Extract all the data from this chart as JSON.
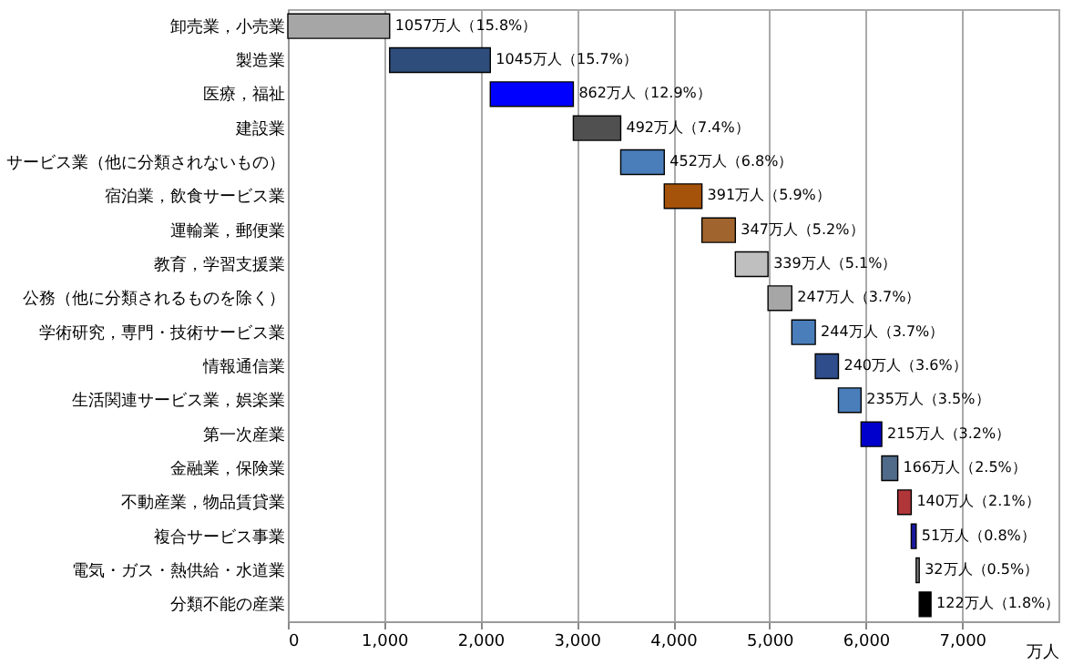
{
  "chart_data": {
    "type": "bar",
    "orientation": "horizontal",
    "xlabel": "万人",
    "categories": [
      "卸売業，小売業",
      "製造業",
      "医療，福祉",
      "建設業",
      "サービス業（他に分類されないもの）",
      "宿泊業，飲食サービス業",
      "運輸業，郵便業",
      "教育，学習支援業",
      "公務（他に分類されるものを除く）",
      "学術研究，専門・技術サービス業",
      "情報通信業",
      "生活関連サービス業，娯楽業",
      "第一次産業",
      "金融業，保険業",
      "不動産業，物品賃貸業",
      "複合サービス事業",
      "電気・ガス・熱供給・水道業",
      "分類不能の産業"
    ],
    "values": [
      1057,
      1045,
      862,
      492,
      452,
      391,
      347,
      339,
      247,
      244,
      240,
      235,
      215,
      166,
      140,
      51,
      32,
      122
    ],
    "base": [
      0,
      1057,
      2102,
      2964,
      3456,
      3908,
      4299,
      4646,
      4985,
      5232,
      5476,
      5716,
      5951,
      6166,
      6332,
      6472,
      6523,
      6555
    ],
    "colors": [
      "#a6a6a6",
      "#2e4d7b",
      "#0000ff",
      "#505050",
      "#4a7ebb",
      "#a5520a",
      "#a0642e",
      "#bfbfbf",
      "#a6a6a6",
      "#4a7ebb",
      "#2e4d8a",
      "#4a7ebb",
      "#0000cc",
      "#506a8a",
      "#b0363a",
      "#1a1aa0",
      "#7f7f7f",
      "#000000"
    ],
    "value_labels": [
      "1057万人（15.8%）",
      "1045万人（15.7%）",
      "862万人（12.9%）",
      "492万人（7.4%）",
      "452万人（6.8%）",
      "391万人（5.9%）",
      "347万人（5.2%）",
      "339万人（5.1%）",
      "247万人（3.7%）",
      "244万人（3.7%）",
      "240万人（3.6%）",
      "235万人（3.5%）",
      "215万人（3.2%）",
      "166万人（2.5%）",
      "140万人（2.1%）",
      "51万人（0.8%）",
      "32万人（0.5%）",
      "122万人（1.8%）"
    ],
    "xlim": [
      0,
      8000
    ],
    "xticks": [
      0,
      {
        "value": 1000,
        "label": "1,000"
      },
      {
        "value": 2000,
        "label": "2,000"
      },
      {
        "value": 3000,
        "label": "3,000"
      },
      {
        "value": 4000,
        "label": "4,000"
      },
      {
        "value": 5000,
        "label": "5,000"
      },
      {
        "value": 6000,
        "label": "6,000"
      },
      {
        "value": 7000,
        "label": "7,000"
      }
    ],
    "grid": "x"
  }
}
